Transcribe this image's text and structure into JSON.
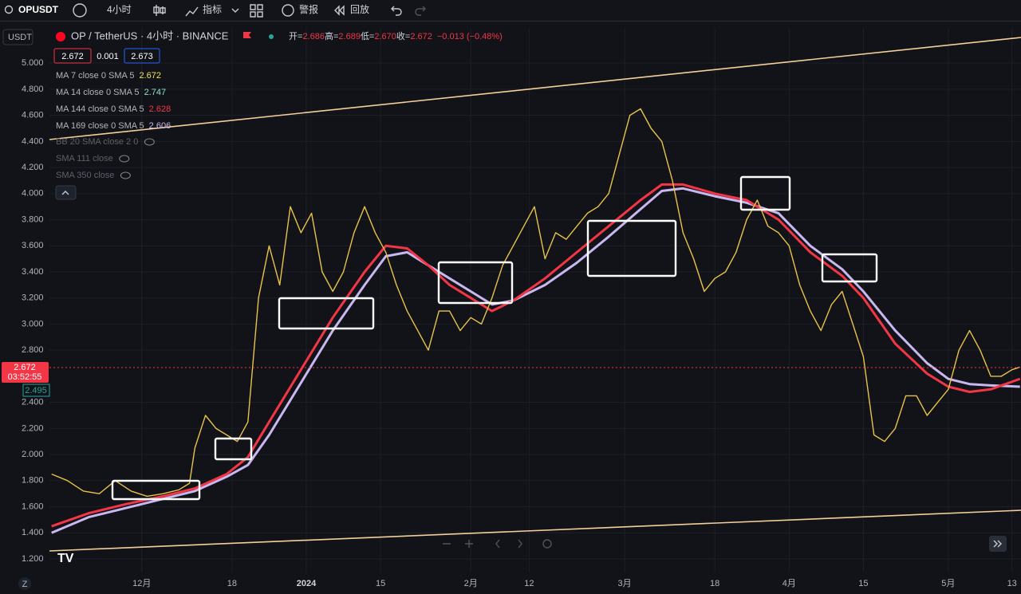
{
  "toolbar": {
    "symbol": "OPUSDT",
    "interval": "4小时",
    "indicators": "指标",
    "alert": "警报",
    "replay": "回放"
  },
  "legend": {
    "currency": "USDT",
    "title": "OP / TetherUS · 4小时 · BINANCE",
    "ohlc": [
      {
        "label": "开=",
        "value": "2.686"
      },
      {
        "label": "高=",
        "value": "2.689"
      },
      {
        "label": "低=",
        "value": "2.670"
      },
      {
        "label": "收=",
        "value": "2.672"
      }
    ],
    "change": "−0.013 (−0.48%)",
    "bid": "2.672",
    "spread": "0.001",
    "ask": "2.673",
    "indicators": [
      {
        "label": "MA 7 close 0 SMA 5",
        "value": "2.672",
        "color": "#f2e35b"
      },
      {
        "label": "MA 14 close 0 SMA 5",
        "value": "2.747",
        "color": "#8fe3c9"
      },
      {
        "label": "MA 144 close 0 SMA 5",
        "value": "2.628",
        "color": "#f23645"
      },
      {
        "label": "MA 169 close 0 SMA 5",
        "value": "2.606",
        "color": "#c9b8f0"
      }
    ],
    "hidden": [
      "BB 20 SMA close 2 0",
      "SMA 111 close",
      "SMA 350 close"
    ]
  },
  "price_badge": {
    "price": "2.672",
    "countdown": "03:52:55",
    "ma_price": "2.495"
  },
  "corner": "Z",
  "chart_data": {
    "type": "line",
    "xlim": [
      -17.4,
      165.7
    ],
    "ylim": [
      1.096,
      5.27
    ],
    "xticks": [
      {
        "value": 0,
        "label": "12月"
      },
      {
        "value": 17,
        "label": "18"
      },
      {
        "value": 31,
        "label": "2024"
      },
      {
        "value": 45,
        "label": "15"
      },
      {
        "value": 62,
        "label": "2月"
      },
      {
        "value": 73,
        "label": "12"
      },
      {
        "value": 91,
        "label": "3月"
      },
      {
        "value": 108,
        "label": "18"
      },
      {
        "value": 122,
        "label": "4月"
      },
      {
        "value": 136,
        "label": "15"
      },
      {
        "value": 152,
        "label": "5月"
      },
      {
        "value": 164,
        "label": "13"
      }
    ],
    "yticks": [
      {
        "value": 1.2,
        "label": "1.200"
      },
      {
        "value": 1.4,
        "label": "1.400"
      },
      {
        "value": 1.6,
        "label": "1.600"
      },
      {
        "value": 1.8,
        "label": "1.800"
      },
      {
        "value": 2,
        "label": "2.000"
      },
      {
        "value": 2.2,
        "label": "2.200"
      },
      {
        "value": 2.4,
        "label": "2.400"
      },
      {
        "value": 2.8,
        "label": "2.800"
      },
      {
        "value": 3,
        "label": "3.000"
      },
      {
        "value": 3.2,
        "label": "3.200"
      },
      {
        "value": 3.4,
        "label": "3.400"
      },
      {
        "value": 3.6,
        "label": "3.600"
      },
      {
        "value": 3.8,
        "label": "3.800"
      },
      {
        "value": 4,
        "label": "4.000"
      },
      {
        "value": 4.2,
        "label": "4.200"
      },
      {
        "value": 4.4,
        "label": "4.400"
      },
      {
        "value": 4.6,
        "label": "4.600"
      },
      {
        "value": 4.8,
        "label": "4.800"
      },
      {
        "value": 5,
        "label": "5.000"
      }
    ],
    "grid": true,
    "series": [
      {
        "color": "#c9b8f0",
        "width": 3,
        "x": [
          -17,
          -10,
          -3,
          4,
          10,
          16,
          20,
          24,
          30,
          36,
          42,
          46,
          50,
          54,
          58,
          62,
          66,
          70,
          76,
          82,
          88,
          94,
          98,
          102,
          108,
          114,
          120,
          126,
          132,
          136,
          142,
          148,
          152,
          156,
          160,
          165.5
        ],
        "values": [
          1.4,
          1.52,
          1.59,
          1.66,
          1.72,
          1.83,
          1.92,
          2.15,
          2.55,
          2.95,
          3.3,
          3.52,
          3.55,
          3.45,
          3.35,
          3.25,
          3.15,
          3.18,
          3.3,
          3.47,
          3.67,
          3.88,
          4.02,
          4.04,
          3.98,
          3.93,
          3.85,
          3.6,
          3.42,
          3.25,
          2.95,
          2.7,
          2.58,
          2.54,
          2.53,
          2.52
        ]
      },
      {
        "color": "#f23645",
        "width": 3,
        "x": [
          -17,
          -10,
          -3,
          4,
          10,
          16,
          20,
          24,
          30,
          36,
          42,
          46,
          50,
          54,
          58,
          62,
          66,
          70,
          76,
          82,
          88,
          94,
          98,
          102,
          108,
          114,
          120,
          126,
          132,
          136,
          142,
          148,
          152,
          156,
          160,
          165.5
        ],
        "values": [
          1.45,
          1.55,
          1.62,
          1.68,
          1.74,
          1.85,
          1.98,
          2.25,
          2.65,
          3.05,
          3.4,
          3.6,
          3.58,
          3.45,
          3.3,
          3.2,
          3.1,
          3.18,
          3.35,
          3.55,
          3.75,
          3.95,
          4.07,
          4.07,
          4.0,
          3.95,
          3.8,
          3.55,
          3.37,
          3.2,
          2.85,
          2.62,
          2.52,
          2.48,
          2.5,
          2.58
        ]
      },
      {
        "color": "#e8c34a",
        "width": 1.4,
        "x": [
          -17,
          -14,
          -11,
          -8,
          -5,
          -2,
          1,
          4,
          7,
          9,
          10,
          12,
          14,
          16,
          18,
          20,
          22,
          24,
          26,
          28,
          30,
          32,
          34,
          36,
          38,
          40,
          42,
          44,
          46,
          48,
          50,
          52,
          54,
          56,
          58,
          60,
          62,
          64,
          66,
          68,
          70,
          72,
          74,
          76,
          78,
          80,
          82,
          84,
          86,
          88,
          90,
          92,
          94,
          96,
          98,
          100,
          102,
          104,
          106,
          108,
          110,
          112,
          114,
          116,
          118,
          120,
          122,
          124,
          126,
          128,
          130,
          132,
          134,
          136,
          138,
          140,
          142,
          144,
          146,
          148,
          150,
          152,
          154,
          156,
          158,
          160,
          162,
          164,
          165.5
        ],
        "values": [
          1.85,
          1.8,
          1.72,
          1.7,
          1.8,
          1.72,
          1.68,
          1.7,
          1.73,
          1.78,
          2.05,
          2.3,
          2.2,
          2.15,
          2.1,
          2.25,
          3.2,
          3.6,
          3.3,
          3.9,
          3.7,
          3.85,
          3.4,
          3.25,
          3.4,
          3.7,
          3.9,
          3.7,
          3.55,
          3.3,
          3.1,
          2.95,
          2.8,
          3.1,
          3.1,
          2.95,
          3.05,
          3.0,
          3.2,
          3.45,
          3.6,
          3.75,
          3.9,
          3.5,
          3.7,
          3.65,
          3.75,
          3.85,
          3.9,
          4.0,
          4.3,
          4.6,
          4.65,
          4.5,
          4.4,
          4.1,
          3.7,
          3.5,
          3.25,
          3.35,
          3.4,
          3.55,
          3.8,
          3.95,
          3.75,
          3.7,
          3.6,
          3.3,
          3.1,
          2.95,
          3.15,
          3.25,
          3.0,
          2.75,
          2.15,
          2.1,
          2.2,
          2.45,
          2.45,
          2.3,
          2.4,
          2.5,
          2.8,
          2.95,
          2.8,
          2.6,
          2.6,
          2.65,
          2.67
        ]
      }
    ]
  }
}
